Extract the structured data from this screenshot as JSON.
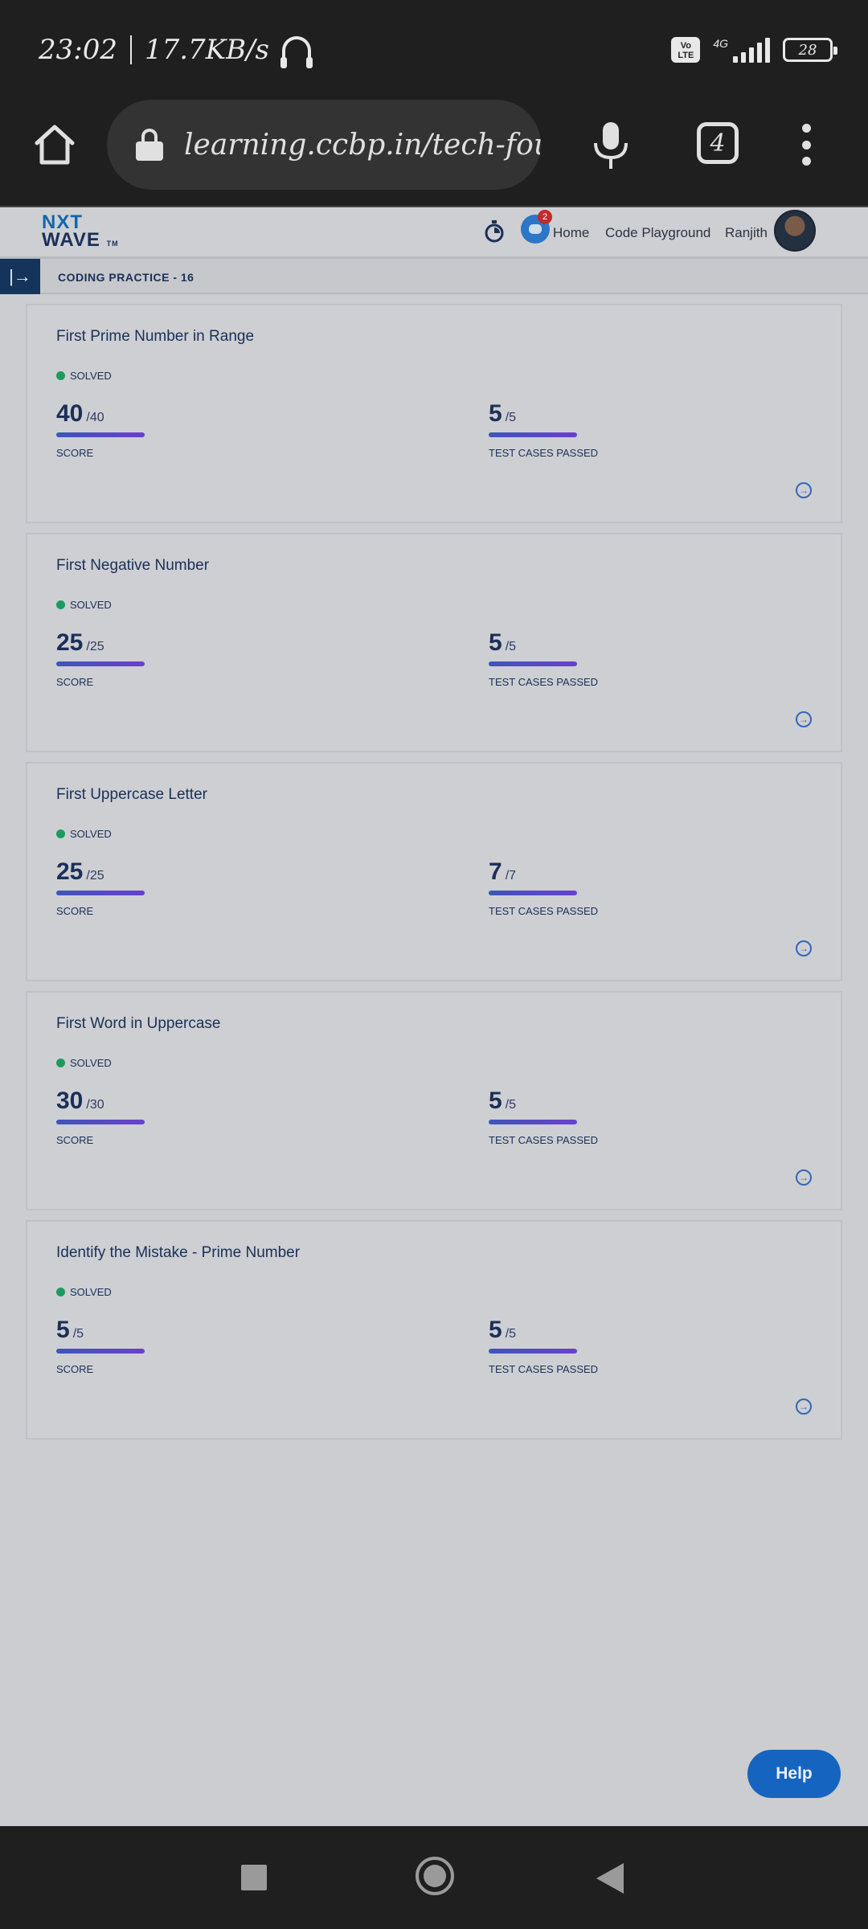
{
  "status_bar": {
    "time": "23:02",
    "speed": "17.7KB/s",
    "volte": "Vo LTE",
    "network": "4G",
    "battery": "28"
  },
  "browser": {
    "url": "learning.ccbp.in/tech-founda",
    "tab_count": "4"
  },
  "header": {
    "logo_line1": "NXT",
    "logo_line2": "WAVE",
    "logo_tm": "TM",
    "chat_badge": "2",
    "nav_home": "Home",
    "nav_playground": "Code Playground",
    "user_name": "Ranjith"
  },
  "page": {
    "practice_title": "CODING PRACTICE - 16"
  },
  "labels": {
    "score": "SCORE",
    "tests": "TEST CASES PASSED"
  },
  "cards": [
    {
      "title": "First Prime Number in Range",
      "status": "SOLVED",
      "score": "40",
      "score_max": "/40",
      "tests": "5",
      "tests_max": "/5"
    },
    {
      "title": "First Negative Number",
      "status": "SOLVED",
      "score": "25",
      "score_max": "/25",
      "tests": "5",
      "tests_max": "/5"
    },
    {
      "title": "First Uppercase Letter",
      "status": "SOLVED",
      "score": "25",
      "score_max": "/25",
      "tests": "7",
      "tests_max": "/7"
    },
    {
      "title": "First Word in Uppercase",
      "status": "SOLVED",
      "score": "30",
      "score_max": "/30",
      "tests": "5",
      "tests_max": "/5"
    },
    {
      "title": "Identify the Mistake - Prime Number",
      "status": "SOLVED",
      "score": "5",
      "score_max": "/5",
      "tests": "5",
      "tests_max": "/5"
    }
  ],
  "help_label": "Help",
  "colors": {
    "brand_navy": "#1b2f57",
    "accent_blue": "#1565c0",
    "solved_green": "#1f9a5e"
  }
}
